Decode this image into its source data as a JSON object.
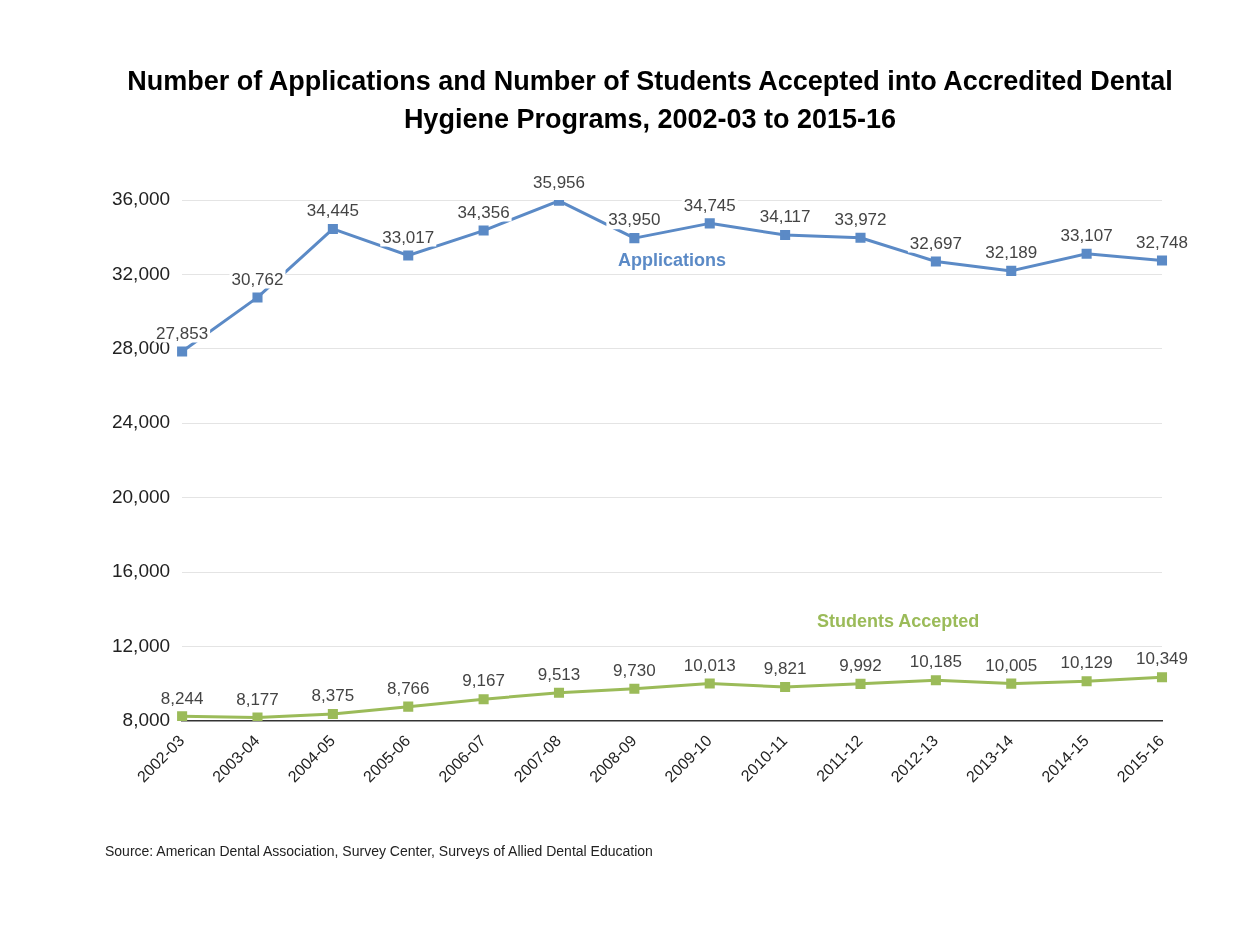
{
  "chart_data": {
    "type": "line",
    "title": "Number of Applications and Number of Students Accepted into Accredited Dental Hygiene Programs, 2002-03 to 2015-16",
    "categories": [
      "2002-03",
      "2003-04",
      "2004-05",
      "2005-06",
      "2006-07",
      "2007-08",
      "2008-09",
      "2009-10",
      "2010-11",
      "2011-12",
      "2012-13",
      "2013-14",
      "2014-15",
      "2015-16"
    ],
    "series": [
      {
        "name": "Applications",
        "color": "#5b8ac6",
        "values": [
          27853,
          30762,
          34445,
          33017,
          34356,
          35956,
          33950,
          34745,
          34117,
          33972,
          32697,
          32189,
          33107,
          32748
        ],
        "value_labels": [
          "27,853",
          "30,762",
          "34,445",
          "33,017",
          "34,356",
          "35,956",
          "33,950",
          "34,745",
          "34,117",
          "33,972",
          "32,697",
          "32,189",
          "33,107",
          "32,748"
        ]
      },
      {
        "name": "Students Accepted",
        "color": "#9bbb59",
        "values": [
          8244,
          8177,
          8375,
          8766,
          9167,
          9513,
          9730,
          10013,
          9821,
          9992,
          10185,
          10005,
          10129,
          10349
        ],
        "value_labels": [
          "8,244",
          "8,177",
          "8,375",
          "8,766",
          "9,167",
          "9,513",
          "9,730",
          "10,013",
          "9,821",
          "9,992",
          "10,185",
          "10,005",
          "10,129",
          "10,349"
        ]
      }
    ],
    "ylim": [
      8000,
      36000
    ],
    "yticks": [
      {
        "value": 8000,
        "label": "8,000"
      },
      {
        "value": 12000,
        "label": "12,000"
      },
      {
        "value": 16000,
        "label": "16,000"
      },
      {
        "value": 20000,
        "label": "20,000"
      },
      {
        "value": 24000,
        "label": "24,000"
      },
      {
        "value": 28000,
        "label": "28,000"
      },
      {
        "value": 32000,
        "label": "32,000"
      },
      {
        "value": 36000,
        "label": "36,000"
      }
    ],
    "grid": "y",
    "legend": false,
    "marker": "square",
    "line_style": "solid",
    "annotations": [
      "Source: American Dental Association, Survey Center, Surveys of Allied Dental Education"
    ]
  }
}
